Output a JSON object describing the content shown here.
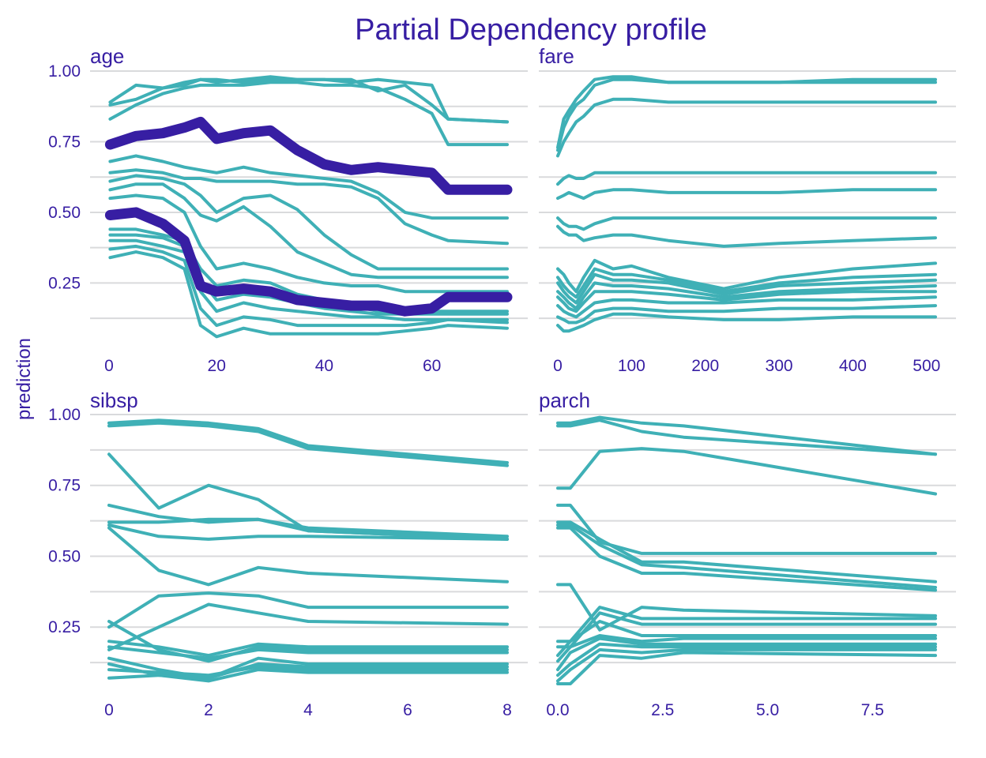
{
  "colors": {
    "individual": "#3fb0b6",
    "aggregated": "#371ea3",
    "text": "#371ea3",
    "grid": "#d9dadc"
  },
  "chart_data": {
    "type": "line",
    "title": "Partial Dependency profile",
    "ylabel": "prediction",
    "panels": [
      {
        "name": "age",
        "xticks": [
          0,
          20,
          40,
          60
        ],
        "yticks": [
          0.25,
          0.5,
          0.75,
          1.0
        ],
        "ytick_labels": [
          "0.25",
          "0.50",
          "0.75",
          "1.00"
        ],
        "show_y_labels": true,
        "x": [
          0.2,
          5,
          10,
          14,
          17,
          20,
          25,
          30,
          35,
          40,
          45,
          50,
          55,
          60,
          63,
          74
        ],
        "xlim": [
          0,
          74
        ],
        "ylim": [
          0.05,
          1.0
        ],
        "series": [
          {
            "values": [
              0.89,
              0.95,
              0.94,
              0.95,
              0.97,
              0.97,
              0.96,
              0.97,
              0.97,
              0.97,
              0.96,
              0.97,
              0.96,
              0.95,
              0.83,
              0.82
            ]
          },
          {
            "values": [
              0.88,
              0.9,
              0.94,
              0.96,
              0.97,
              0.96,
              0.97,
              0.98,
              0.97,
              0.97,
              0.97,
              0.93,
              0.95,
              0.88,
              0.83,
              0.82
            ]
          },
          {
            "values": [
              0.83,
              0.88,
              0.92,
              0.94,
              0.95,
              0.95,
              0.95,
              0.96,
              0.96,
              0.95,
              0.95,
              0.94,
              0.9,
              0.85,
              0.74,
              0.74
            ]
          },
          {
            "values": [
              0.68,
              0.7,
              0.68,
              0.66,
              0.65,
              0.64,
              0.66,
              0.64,
              0.63,
              0.62,
              0.61,
              0.57,
              0.5,
              0.48,
              0.48,
              0.48
            ]
          },
          {
            "values": [
              0.64,
              0.65,
              0.64,
              0.62,
              0.62,
              0.61,
              0.61,
              0.61,
              0.6,
              0.6,
              0.59,
              0.55,
              0.46,
              0.42,
              0.4,
              0.39
            ]
          },
          {
            "values": [
              0.61,
              0.63,
              0.62,
              0.6,
              0.56,
              0.5,
              0.55,
              0.56,
              0.51,
              0.42,
              0.35,
              0.3,
              0.3,
              0.3,
              0.3,
              0.3
            ]
          },
          {
            "values": [
              0.58,
              0.6,
              0.6,
              0.55,
              0.49,
              0.47,
              0.52,
              0.45,
              0.36,
              0.32,
              0.28,
              0.27,
              0.27,
              0.27,
              0.27,
              0.27
            ]
          },
          {
            "values": [
              0.55,
              0.56,
              0.55,
              0.5,
              0.38,
              0.3,
              0.32,
              0.3,
              0.27,
              0.25,
              0.24,
              0.24,
              0.22,
              0.22,
              0.22,
              0.22
            ]
          },
          {
            "values": [
              0.44,
              0.44,
              0.42,
              0.4,
              0.3,
              0.24,
              0.26,
              0.25,
              0.21,
              0.19,
              0.17,
              0.15,
              0.15,
              0.15,
              0.15,
              0.15
            ]
          },
          {
            "values": [
              0.42,
              0.42,
              0.41,
              0.38,
              0.26,
              0.19,
              0.21,
              0.2,
              0.18,
              0.16,
              0.15,
              0.14,
              0.14,
              0.14,
              0.14,
              0.14
            ]
          },
          {
            "values": [
              0.4,
              0.4,
              0.38,
              0.36,
              0.22,
              0.15,
              0.18,
              0.16,
              0.15,
              0.14,
              0.13,
              0.13,
              0.12,
              0.12,
              0.12,
              0.12
            ]
          },
          {
            "values": [
              0.37,
              0.38,
              0.36,
              0.33,
              0.16,
              0.1,
              0.13,
              0.12,
              0.1,
              0.1,
              0.1,
              0.1,
              0.1,
              0.11,
              0.12,
              0.11
            ]
          },
          {
            "values": [
              0.34,
              0.36,
              0.34,
              0.3,
              0.1,
              0.06,
              0.09,
              0.07,
              0.07,
              0.07,
              0.07,
              0.07,
              0.08,
              0.09,
              0.1,
              0.09
            ]
          }
        ],
        "aggregated": [
          {
            "values": [
              0.74,
              0.77,
              0.78,
              0.8,
              0.82,
              0.76,
              0.78,
              0.79,
              0.72,
              0.67,
              0.65,
              0.66,
              0.65,
              0.64,
              0.58,
              0.58
            ]
          },
          {
            "values": [
              0.49,
              0.5,
              0.46,
              0.4,
              0.24,
              0.22,
              0.23,
              0.22,
              0.19,
              0.18,
              0.17,
              0.17,
              0.15,
              0.16,
              0.2,
              0.2
            ]
          }
        ]
      },
      {
        "name": "fare",
        "xticks": [
          0,
          100,
          200,
          300,
          400,
          500
        ],
        "yticks": [
          0.25,
          0.5,
          0.75,
          1.0
        ],
        "ytick_labels": [
          "0.25",
          "0.50",
          "0.75",
          "1.00"
        ],
        "show_y_labels": false,
        "x": [
          0,
          8,
          15,
          25,
          35,
          50,
          75,
          100,
          150,
          225,
          300,
          400,
          512
        ],
        "xlim": [
          0,
          512
        ],
        "ylim": [
          0.05,
          1.0
        ],
        "series": [
          {
            "values": [
              0.73,
              0.83,
              0.86,
              0.9,
              0.93,
              0.97,
              0.98,
              0.98,
              0.96,
              0.96,
              0.96,
              0.97,
              0.97
            ]
          },
          {
            "values": [
              0.72,
              0.8,
              0.84,
              0.88,
              0.9,
              0.95,
              0.97,
              0.97,
              0.96,
              0.96,
              0.96,
              0.96,
              0.96
            ]
          },
          {
            "values": [
              0.7,
              0.75,
              0.78,
              0.82,
              0.84,
              0.88,
              0.9,
              0.9,
              0.89,
              0.89,
              0.89,
              0.89,
              0.89
            ]
          },
          {
            "values": [
              0.6,
              0.62,
              0.63,
              0.62,
              0.62,
              0.64,
              0.64,
              0.64,
              0.64,
              0.64,
              0.64,
              0.64,
              0.64
            ]
          },
          {
            "values": [
              0.55,
              0.56,
              0.57,
              0.56,
              0.55,
              0.57,
              0.58,
              0.58,
              0.57,
              0.57,
              0.57,
              0.58,
              0.58
            ]
          },
          {
            "values": [
              0.48,
              0.46,
              0.45,
              0.45,
              0.44,
              0.46,
              0.48,
              0.48,
              0.48,
              0.48,
              0.48,
              0.48,
              0.48
            ]
          },
          {
            "values": [
              0.45,
              0.43,
              0.42,
              0.42,
              0.4,
              0.41,
              0.42,
              0.42,
              0.4,
              0.38,
              0.39,
              0.4,
              0.41
            ]
          },
          {
            "values": [
              0.3,
              0.28,
              0.25,
              0.22,
              0.27,
              0.33,
              0.3,
              0.31,
              0.27,
              0.23,
              0.27,
              0.3,
              0.32
            ]
          },
          {
            "values": [
              0.27,
              0.24,
              0.22,
              0.2,
              0.24,
              0.3,
              0.28,
              0.28,
              0.26,
              0.22,
              0.25,
              0.27,
              0.28
            ]
          },
          {
            "values": [
              0.25,
              0.22,
              0.2,
              0.18,
              0.22,
              0.28,
              0.26,
              0.26,
              0.25,
              0.21,
              0.24,
              0.25,
              0.26
            ]
          },
          {
            "values": [
              0.22,
              0.2,
              0.18,
              0.16,
              0.2,
              0.25,
              0.24,
              0.24,
              0.23,
              0.2,
              0.22,
              0.23,
              0.24
            ]
          },
          {
            "values": [
              0.2,
              0.18,
              0.16,
              0.15,
              0.18,
              0.22,
              0.22,
              0.22,
              0.21,
              0.19,
              0.21,
              0.22,
              0.22
            ]
          },
          {
            "values": [
              0.17,
              0.15,
              0.14,
              0.13,
              0.15,
              0.18,
              0.19,
              0.19,
              0.18,
              0.18,
              0.19,
              0.19,
              0.2
            ]
          },
          {
            "values": [
              0.13,
              0.12,
              0.11,
              0.11,
              0.12,
              0.15,
              0.16,
              0.16,
              0.15,
              0.15,
              0.16,
              0.16,
              0.17
            ]
          },
          {
            "values": [
              0.1,
              0.08,
              0.08,
              0.09,
              0.1,
              0.12,
              0.14,
              0.14,
              0.13,
              0.12,
              0.12,
              0.13,
              0.13
            ]
          }
        ],
        "aggregated": []
      },
      {
        "name": "sibsp",
        "xticks": [
          0,
          2,
          4,
          6,
          8
        ],
        "yticks": [
          0.25,
          0.5,
          0.75,
          1.0
        ],
        "ytick_labels": [
          "0.25",
          "0.50",
          "0.75",
          "1.00"
        ],
        "show_y_labels": true,
        "x": [
          0,
          1,
          2,
          3,
          4,
          8
        ],
        "xlim": [
          0,
          8
        ],
        "ylim": [
          0.05,
          1.0
        ],
        "series": [
          {
            "values": [
              0.97,
              0.98,
              0.97,
              0.95,
              0.89,
              0.83
            ]
          },
          {
            "values": [
              0.96,
              0.97,
              0.96,
              0.94,
              0.88,
              0.82
            ]
          },
          {
            "values": [
              0.86,
              0.67,
              0.75,
              0.7,
              0.59,
              0.56
            ]
          },
          {
            "values": [
              0.68,
              0.64,
              0.62,
              0.63,
              0.6,
              0.57
            ]
          },
          {
            "values": [
              0.62,
              0.62,
              0.63,
              0.63,
              0.59,
              0.56
            ]
          },
          {
            "values": [
              0.61,
              0.57,
              0.56,
              0.57,
              0.57,
              0.56
            ]
          },
          {
            "values": [
              0.6,
              0.45,
              0.4,
              0.46,
              0.44,
              0.41
            ]
          },
          {
            "values": [
              0.25,
              0.36,
              0.37,
              0.36,
              0.32,
              0.32
            ]
          },
          {
            "values": [
              0.17,
              0.25,
              0.33,
              0.3,
              0.27,
              0.26
            ]
          },
          {
            "values": [
              0.27,
              0.17,
              0.13,
              0.18,
              0.17,
              0.17
            ]
          },
          {
            "values": [
              0.2,
              0.18,
              0.15,
              0.19,
              0.18,
              0.18
            ]
          },
          {
            "values": [
              0.18,
              0.16,
              0.14,
              0.17,
              0.16,
              0.16
            ]
          },
          {
            "values": [
              0.14,
              0.1,
              0.07,
              0.14,
              0.12,
              0.12
            ]
          },
          {
            "values": [
              0.12,
              0.08,
              0.07,
              0.12,
              0.11,
              0.11
            ]
          },
          {
            "values": [
              0.1,
              0.09,
              0.08,
              0.11,
              0.1,
              0.1
            ]
          },
          {
            "values": [
              0.07,
              0.08,
              0.06,
              0.1,
              0.09,
              0.09
            ]
          }
        ],
        "aggregated": []
      },
      {
        "name": "parch",
        "xticks": [
          0.0,
          2.5,
          5.0,
          7.5
        ],
        "xtick_labels": [
          "0.0",
          "2.5",
          "5.0",
          "7.5"
        ],
        "yticks": [
          0.25,
          0.5,
          0.75,
          1.0
        ],
        "ytick_labels": [
          "0.25",
          "0.50",
          "0.75",
          "1.00"
        ],
        "show_y_labels": false,
        "x": [
          0,
          0.3,
          1,
          2,
          3,
          9
        ],
        "xlim": [
          0,
          9
        ],
        "ylim": [
          0.05,
          1.0
        ],
        "series": [
          {
            "values": [
              0.97,
              0.97,
              0.99,
              0.97,
              0.96,
              0.86
            ]
          },
          {
            "values": [
              0.96,
              0.96,
              0.98,
              0.94,
              0.92,
              0.86
            ]
          },
          {
            "values": [
              0.74,
              0.74,
              0.87,
              0.88,
              0.87,
              0.72
            ]
          },
          {
            "values": [
              0.68,
              0.68,
              0.55,
              0.51,
              0.51,
              0.51
            ]
          },
          {
            "values": [
              0.62,
              0.62,
              0.56,
              0.48,
              0.48,
              0.41
            ]
          },
          {
            "values": [
              0.61,
              0.61,
              0.54,
              0.47,
              0.46,
              0.39
            ]
          },
          {
            "values": [
              0.6,
              0.6,
              0.5,
              0.44,
              0.44,
              0.38
            ]
          },
          {
            "values": [
              0.4,
              0.4,
              0.24,
              0.32,
              0.31,
              0.29
            ]
          },
          {
            "values": [
              0.2,
              0.2,
              0.32,
              0.28,
              0.28,
              0.28
            ]
          },
          {
            "values": [
              0.18,
              0.18,
              0.3,
              0.26,
              0.26,
              0.26
            ]
          },
          {
            "values": [
              0.15,
              0.2,
              0.27,
              0.22,
              0.22,
              0.22
            ]
          },
          {
            "values": [
              0.13,
              0.18,
              0.22,
              0.2,
              0.21,
              0.21
            ]
          },
          {
            "values": [
              0.1,
              0.16,
              0.21,
              0.19,
              0.19,
              0.19
            ]
          },
          {
            "values": [
              0.08,
              0.12,
              0.19,
              0.18,
              0.18,
              0.18
            ]
          },
          {
            "values": [
              0.06,
              0.1,
              0.17,
              0.16,
              0.17,
              0.17
            ]
          },
          {
            "values": [
              0.05,
              0.05,
              0.15,
              0.14,
              0.16,
              0.15
            ]
          }
        ],
        "aggregated": []
      }
    ]
  }
}
